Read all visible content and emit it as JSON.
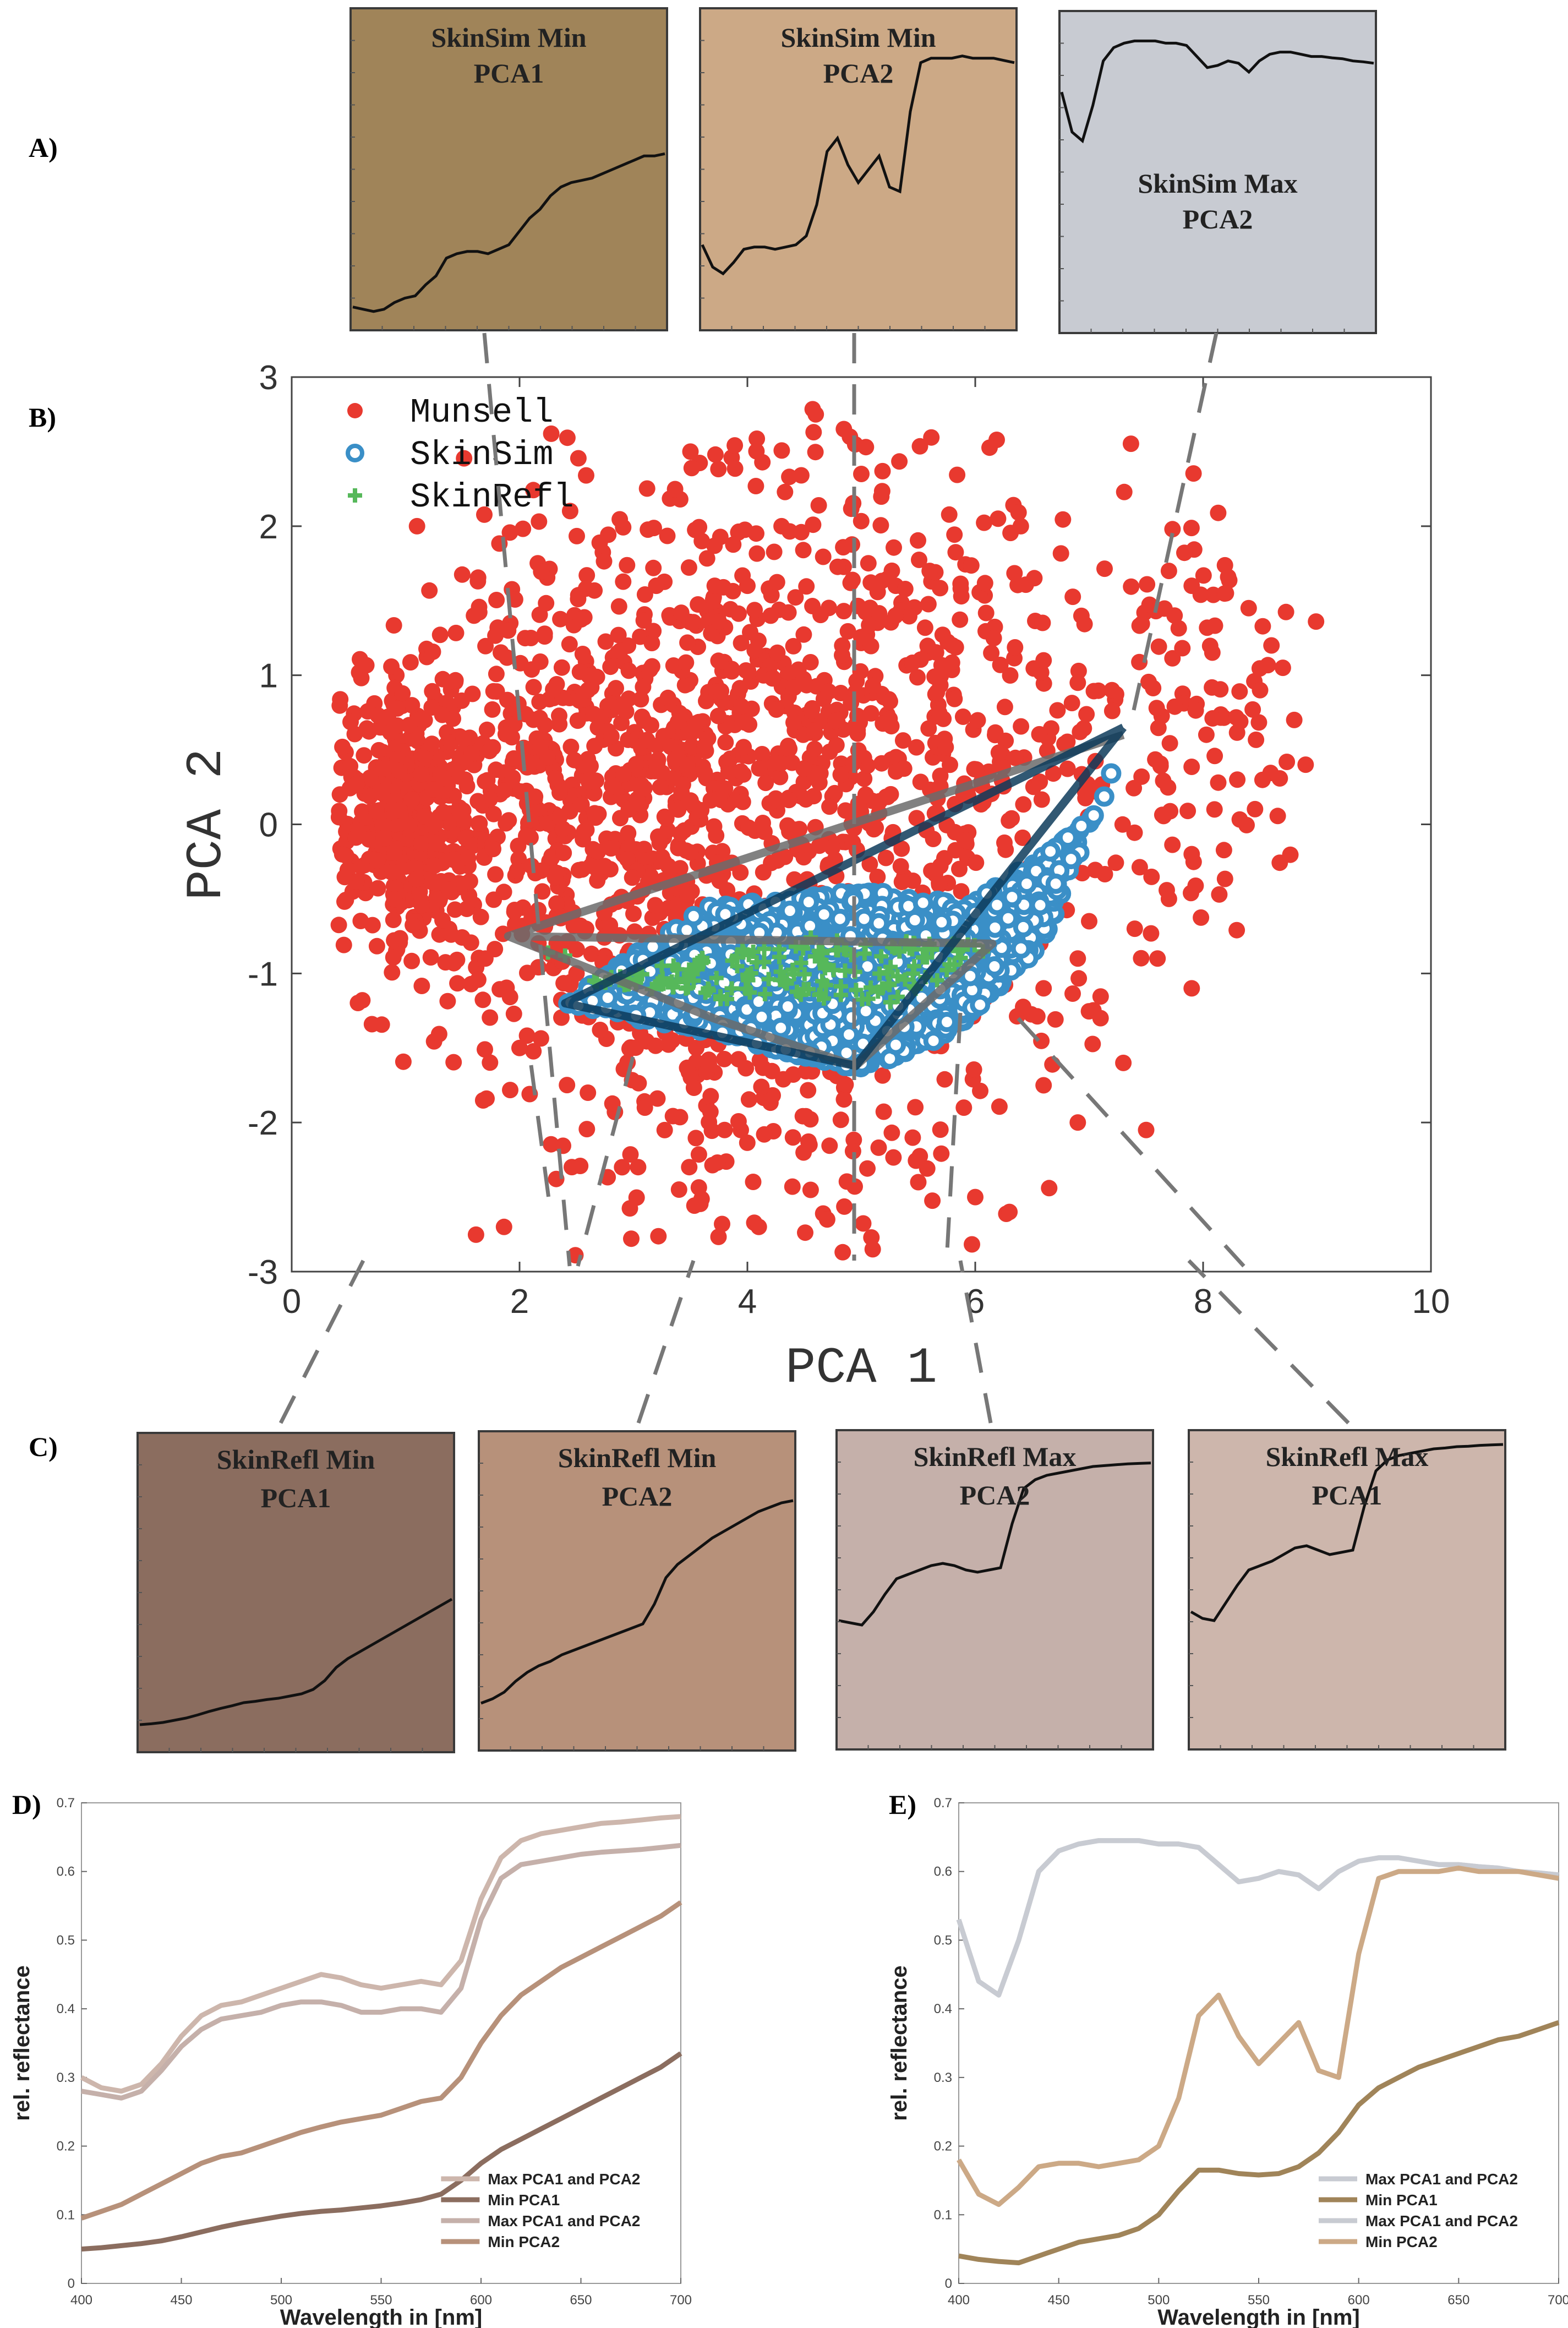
{
  "colors": {
    "munsell": "#e8392f",
    "skinsim": "#3a8fc7",
    "skinrefl": "#56b85a",
    "hull_dark": "#0d3b5a",
    "hull_gray": "#6b6b6b"
  },
  "panel_labels": {
    "A": "A)",
    "B": "B)",
    "C": "C)",
    "D": "D)",
    "E": "E)"
  },
  "boxes_top": [
    {
      "title1": "SkinSim Min",
      "title2": "PCA1",
      "bg": "#a08459",
      "curve": [
        0.04,
        0.035,
        0.03,
        0.035,
        0.05,
        0.06,
        0.065,
        0.09,
        0.11,
        0.15,
        0.16,
        0.165,
        0.165,
        0.16,
        0.17,
        0.18,
        0.21,
        0.24,
        0.26,
        0.29,
        0.31,
        0.32,
        0.325,
        0.33,
        0.34,
        0.35,
        0.36,
        0.37,
        0.38,
        0.38,
        0.385
      ]
    },
    {
      "title1": "SkinSim Min",
      "title2": "PCA2",
      "bg": "#cca986",
      "curve": [
        0.18,
        0.13,
        0.115,
        0.14,
        0.17,
        0.175,
        0.175,
        0.17,
        0.175,
        0.18,
        0.2,
        0.27,
        0.39,
        0.42,
        0.36,
        0.32,
        0.35,
        0.38,
        0.31,
        0.3,
        0.48,
        0.59,
        0.6,
        0.6,
        0.6,
        0.605,
        0.6,
        0.6,
        0.6,
        0.595,
        0.59
      ]
    },
    {
      "title1": "SkinSim Max",
      "title2": "PCA2",
      "bg": "#c8cbd2",
      "curve": [
        0.53,
        0.44,
        0.42,
        0.5,
        0.6,
        0.63,
        0.64,
        0.645,
        0.645,
        0.645,
        0.64,
        0.64,
        0.635,
        0.61,
        0.585,
        0.59,
        0.6,
        0.595,
        0.575,
        0.6,
        0.615,
        0.62,
        0.62,
        0.615,
        0.61,
        0.61,
        0.607,
        0.605,
        0.6,
        0.598,
        0.595
      ]
    }
  ],
  "boxes_bottom": [
    {
      "title1": "SkinRefl Min",
      "title2": "PCA1",
      "bg": "#8b6d5f",
      "curve": [
        0.05,
        0.052,
        0.055,
        0.06,
        0.065,
        0.072,
        0.08,
        0.087,
        0.093,
        0.1,
        0.103,
        0.107,
        0.11,
        0.115,
        0.12,
        0.13,
        0.15,
        0.18,
        0.2,
        0.215,
        0.23,
        0.245,
        0.26,
        0.275,
        0.29,
        0.305,
        0.32,
        0.335
      ]
    },
    {
      "title1": "SkinRefl Min",
      "title2": "PCA2",
      "bg": "#b7917a",
      "curve": [
        0.095,
        0.105,
        0.12,
        0.145,
        0.165,
        0.18,
        0.19,
        0.205,
        0.215,
        0.225,
        0.235,
        0.245,
        0.255,
        0.265,
        0.275,
        0.32,
        0.38,
        0.41,
        0.43,
        0.45,
        0.47,
        0.485,
        0.5,
        0.515,
        0.53,
        0.54,
        0.55,
        0.555
      ]
    },
    {
      "title1": "SkinRefl Max",
      "title2": "PCA2",
      "bg": "#c5b0aa",
      "curve": [
        0.28,
        0.275,
        0.27,
        0.3,
        0.34,
        0.375,
        0.385,
        0.395,
        0.405,
        0.41,
        0.405,
        0.395,
        0.39,
        0.395,
        0.4,
        0.5,
        0.58,
        0.6,
        0.61,
        0.615,
        0.62,
        0.625,
        0.63,
        0.632,
        0.634,
        0.636,
        0.637,
        0.638
      ]
    },
    {
      "title1": "SkinRefl Max",
      "title2": "PCA1",
      "bg": "#cdb6ac",
      "curve": [
        0.3,
        0.285,
        0.28,
        0.32,
        0.36,
        0.395,
        0.405,
        0.415,
        0.43,
        0.445,
        0.45,
        0.44,
        0.43,
        0.435,
        0.44,
        0.54,
        0.62,
        0.645,
        0.655,
        0.66,
        0.665,
        0.67,
        0.672,
        0.675,
        0.676,
        0.678,
        0.679,
        0.68
      ]
    }
  ],
  "chart_data": [
    {
      "type": "scatter",
      "panel": "B",
      "xlabel": "PCA 1",
      "ylabel": "PCA 2",
      "xlim": [
        0,
        10
      ],
      "ylim": [
        -3,
        3
      ],
      "xticks": [
        "0",
        "2",
        "4",
        "6",
        "8",
        "10"
      ],
      "yticks": [
        "-3",
        "-2",
        "-1",
        "0",
        "1",
        "2",
        "3"
      ],
      "legend": [
        {
          "name": "Munsell",
          "marker": "filled-circle"
        },
        {
          "name": "SkinSim",
          "marker": "open-circle"
        },
        {
          "name": "SkinRefl",
          "marker": "plus"
        }
      ],
      "munsell_points": [
        [
          1.1,
          2.0
        ],
        [
          4.6,
          2.75
        ],
        [
          4.9,
          2.6
        ],
        [
          3.5,
          2.5
        ],
        [
          5.0,
          2.35
        ],
        [
          6.2,
          2.05
        ],
        [
          6.4,
          2.0
        ],
        [
          7.7,
          1.7
        ],
        [
          7.9,
          1.6
        ],
        [
          8.2,
          1.55
        ],
        [
          8.4,
          1.45
        ],
        [
          8.6,
          1.2
        ],
        [
          8.7,
          1.05
        ],
        [
          8.5,
          0.9
        ],
        [
          8.8,
          0.7
        ],
        [
          8.9,
          0.4
        ],
        [
          8.3,
          0.3
        ],
        [
          8.1,
          0.1
        ],
        [
          7.9,
          -0.2
        ],
        [
          7.7,
          -0.5
        ],
        [
          7.4,
          -0.7
        ],
        [
          7.6,
          -0.9
        ],
        [
          7.9,
          -1.1
        ],
        [
          7.1,
          -1.3
        ],
        [
          7.3,
          -1.6
        ],
        [
          7.5,
          -2.05
        ],
        [
          6.9,
          -2.0
        ],
        [
          5.1,
          -2.85
        ],
        [
          4.7,
          -2.65
        ],
        [
          4.1,
          -2.7
        ],
        [
          3.4,
          -2.45
        ],
        [
          2.9,
          -2.3
        ],
        [
          6.0,
          -2.5
        ],
        [
          6.3,
          -2.6
        ],
        [
          5.5,
          -2.4
        ],
        [
          1.6,
          1.4
        ],
        [
          1.9,
          1.3
        ],
        [
          2.1,
          1.25
        ],
        [
          2.6,
          0.9
        ],
        [
          3.2,
          1.6
        ],
        [
          3.6,
          1.9
        ],
        [
          4.0,
          1.6
        ],
        [
          4.3,
          2.0
        ],
        [
          5.3,
          1.4
        ],
        [
          5.6,
          1.7
        ],
        [
          5.8,
          1.2
        ],
        [
          6.6,
          1.1
        ],
        [
          6.9,
          0.95
        ],
        [
          7.2,
          0.9
        ],
        [
          2.2,
          -0.45
        ],
        [
          1.7,
          -0.9
        ],
        [
          2.5,
          -1.0
        ],
        [
          3.0,
          -0.6
        ],
        [
          2.0,
          -1.5
        ],
        [
          2.6,
          -1.8
        ],
        [
          3.1,
          -1.9
        ],
        [
          6.6,
          -1.1
        ],
        [
          6.9,
          -0.9
        ],
        [
          7.0,
          -0.65
        ],
        [
          5.9,
          -1.9
        ],
        [
          6.6,
          -1.75
        ],
        [
          3.8,
          -2.05
        ],
        [
          4.4,
          -2.1
        ]
      ],
      "skinsim_region": [
        [
          2.4,
          -1.2
        ],
        [
          3.6,
          -0.55
        ],
        [
          5.0,
          -0.45
        ],
        [
          6.0,
          -0.5
        ],
        [
          6.7,
          -0.15
        ],
        [
          7.1,
          0.1
        ],
        [
          7.35,
          0.65
        ],
        [
          6.6,
          -0.8
        ],
        [
          5.8,
          -1.4
        ],
        [
          5.0,
          -1.65
        ],
        [
          3.9,
          -1.45
        ]
      ],
      "skinrefl_region": [
        [
          2.6,
          -1.05
        ],
        [
          4.5,
          -0.75
        ],
        [
          6.2,
          -0.8
        ],
        [
          5.4,
          -1.2
        ],
        [
          4.0,
          -1.2
        ]
      ],
      "hull_dark": [
        [
          7.3,
          0.65
        ],
        [
          4.95,
          -1.62
        ],
        [
          2.4,
          -1.2
        ],
        [
          7.3,
          0.65
        ]
      ],
      "hull_gray": [
        [
          1.9,
          -0.75
        ],
        [
          6.15,
          -0.8
        ],
        [
          4.95,
          -1.62
        ],
        [
          3.7,
          -1.3
        ],
        [
          1.9,
          -0.75
        ],
        [
          7.3,
          0.6
        ]
      ],
      "dashed_lines": [
        [
          [
            1.75,
            3
          ],
          [
            2.1,
            -3
          ]
        ],
        [
          [
            4.95,
            3
          ],
          [
            4.95,
            -3
          ]
        ],
        [
          [
            8.3,
            3
          ],
          [
            7.3,
            0.65
          ]
        ]
      ]
    },
    {
      "type": "line",
      "panel": "D",
      "xlabel": "Wavelength in [nm]",
      "ylabel": "rel. reflectance",
      "xlim": [
        400,
        700
      ],
      "ylim": [
        0,
        0.7
      ],
      "xticks": [
        "400",
        "450",
        "500",
        "550",
        "600",
        "650",
        "700"
      ],
      "yticks": [
        "0",
        "0.1",
        "0.2",
        "0.3",
        "0.4",
        "0.5",
        "0.6",
        "0.7"
      ],
      "x": [
        400,
        410,
        420,
        430,
        440,
        450,
        460,
        470,
        480,
        490,
        500,
        510,
        520,
        530,
        540,
        550,
        560,
        570,
        580,
        590,
        600,
        610,
        620,
        630,
        640,
        650,
        660,
        670,
        680,
        690,
        700
      ],
      "series": [
        {
          "name": "Max PCA1 and PCA2",
          "color": "#cdb6ac",
          "values": [
            0.3,
            0.285,
            0.28,
            0.29,
            0.32,
            0.36,
            0.39,
            0.405,
            0.41,
            0.42,
            0.43,
            0.44,
            0.45,
            0.445,
            0.435,
            0.43,
            0.435,
            0.44,
            0.435,
            0.47,
            0.56,
            0.62,
            0.645,
            0.655,
            0.66,
            0.665,
            0.67,
            0.672,
            0.675,
            0.678,
            0.68
          ]
        },
        {
          "name": "Min PCA1",
          "color": "#8b6d5f",
          "values": [
            0.05,
            0.052,
            0.055,
            0.058,
            0.062,
            0.068,
            0.075,
            0.082,
            0.088,
            0.093,
            0.098,
            0.102,
            0.105,
            0.107,
            0.11,
            0.113,
            0.117,
            0.122,
            0.13,
            0.15,
            0.175,
            0.195,
            0.21,
            0.225,
            0.24,
            0.255,
            0.27,
            0.285,
            0.3,
            0.315,
            0.335
          ]
        },
        {
          "name": "Max PCA1 and PCA2",
          "color": "#c5b0aa",
          "values": [
            0.28,
            0.275,
            0.27,
            0.28,
            0.31,
            0.345,
            0.37,
            0.385,
            0.39,
            0.395,
            0.405,
            0.41,
            0.41,
            0.405,
            0.395,
            0.395,
            0.4,
            0.4,
            0.395,
            0.43,
            0.53,
            0.59,
            0.61,
            0.615,
            0.62,
            0.625,
            0.628,
            0.63,
            0.632,
            0.635,
            0.638
          ]
        },
        {
          "name": "Min PCA2",
          "color": "#b7917a",
          "values": [
            0.095,
            0.105,
            0.115,
            0.13,
            0.145,
            0.16,
            0.175,
            0.185,
            0.19,
            0.2,
            0.21,
            0.22,
            0.228,
            0.235,
            0.24,
            0.245,
            0.255,
            0.265,
            0.27,
            0.3,
            0.35,
            0.39,
            0.42,
            0.44,
            0.46,
            0.475,
            0.49,
            0.505,
            0.52,
            0.535,
            0.555
          ]
        }
      ]
    },
    {
      "type": "line",
      "panel": "E",
      "xlabel": "Wavelength in [nm]",
      "ylabel": "rel. reflectance",
      "xlim": [
        400,
        700
      ],
      "ylim": [
        0,
        0.7
      ],
      "xticks": [
        "400",
        "450",
        "500",
        "550",
        "600",
        "650",
        "700"
      ],
      "yticks": [
        "0",
        "0.1",
        "0.2",
        "0.3",
        "0.4",
        "0.5",
        "0.6",
        "0.7"
      ],
      "x": [
        400,
        410,
        420,
        430,
        440,
        450,
        460,
        470,
        480,
        490,
        500,
        510,
        520,
        530,
        540,
        550,
        560,
        570,
        580,
        590,
        600,
        610,
        620,
        630,
        640,
        650,
        660,
        670,
        680,
        690,
        700
      ],
      "series": [
        {
          "name": "Max PCA1 and PCA2",
          "color": "#c8cbd2",
          "values": [
            0.53,
            0.44,
            0.42,
            0.5,
            0.6,
            0.63,
            0.64,
            0.645,
            0.645,
            0.645,
            0.64,
            0.64,
            0.635,
            0.61,
            0.585,
            0.59,
            0.6,
            0.595,
            0.575,
            0.6,
            0.615,
            0.62,
            0.62,
            0.615,
            0.61,
            0.61,
            0.607,
            0.605,
            0.6,
            0.598,
            0.595
          ]
        },
        {
          "name": "Min PCA1",
          "color": "#a08459",
          "values": [
            0.04,
            0.035,
            0.032,
            0.03,
            0.04,
            0.05,
            0.06,
            0.065,
            0.07,
            0.08,
            0.1,
            0.135,
            0.165,
            0.165,
            0.16,
            0.158,
            0.16,
            0.17,
            0.19,
            0.22,
            0.26,
            0.285,
            0.3,
            0.315,
            0.325,
            0.335,
            0.345,
            0.355,
            0.36,
            0.37,
            0.38
          ]
        },
        {
          "name": "Max PCA1 and PCA2",
          "color": "#c8cbd2",
          "values": [
            0.53,
            0.44,
            0.42,
            0.5,
            0.6,
            0.63,
            0.64,
            0.645,
            0.645,
            0.645,
            0.64,
            0.64,
            0.635,
            0.61,
            0.585,
            0.59,
            0.6,
            0.595,
            0.575,
            0.6,
            0.615,
            0.62,
            0.62,
            0.615,
            0.61,
            0.61,
            0.607,
            0.605,
            0.6,
            0.598,
            0.595
          ]
        },
        {
          "name": "Min PCA2",
          "color": "#cca986",
          "values": [
            0.18,
            0.13,
            0.115,
            0.14,
            0.17,
            0.175,
            0.175,
            0.17,
            0.175,
            0.18,
            0.2,
            0.27,
            0.39,
            0.42,
            0.36,
            0.32,
            0.35,
            0.38,
            0.31,
            0.3,
            0.48,
            0.59,
            0.6,
            0.6,
            0.6,
            0.605,
            0.6,
            0.6,
            0.6,
            0.595,
            0.59
          ]
        }
      ]
    }
  ]
}
